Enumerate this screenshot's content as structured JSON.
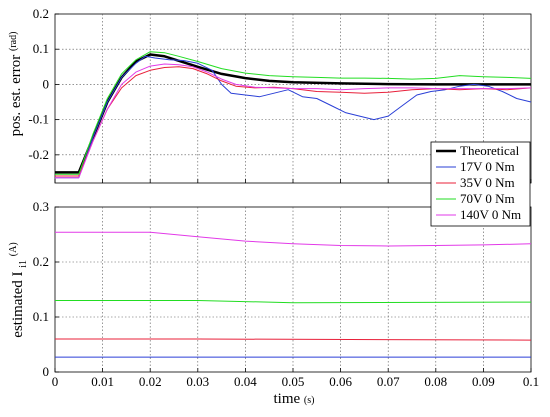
{
  "figure": {
    "xlabel_main": "time",
    "xlabel_unit": "(s)"
  },
  "legend": {
    "entries": [
      {
        "label": "Theoretical",
        "color": "#000000",
        "width": 2.5
      },
      {
        "label": "17V 0 Nm",
        "color": "#2a3fd6",
        "width": 1
      },
      {
        "label": "35V 0 Nm",
        "color": "#e8203a",
        "width": 1
      },
      {
        "label": "70V 0 Nm",
        "color": "#22dd22",
        "width": 1
      },
      {
        "label": "140V 0 Nm",
        "color": "#e23ae8",
        "width": 1
      }
    ]
  },
  "chart_data": [
    {
      "type": "line",
      "ylabel_main": "pos. est. error",
      "ylabel_unit": "(rad)",
      "xlim": [
        0,
        0.1
      ],
      "ylim": [
        -0.28,
        0.2
      ],
      "xticks": [
        "0",
        "0.01",
        "0.02",
        "0.03",
        "0.04",
        "0.05",
        "0.06",
        "0.07",
        "0.08",
        "0.09",
        "0.1"
      ],
      "yticks": [
        -0.2,
        -0.1,
        0,
        0.1,
        0.2
      ],
      "ytick_labels": [
        "-0.2",
        "-0.1",
        "0",
        "0.1",
        "0.2"
      ],
      "grid": true,
      "legend_position": "bottom-right",
      "series": [
        {
          "name": "Theoretical",
          "color": "#000000",
          "width": 2.5,
          "points": [
            [
              0,
              -0.25
            ],
            [
              0.005,
              -0.25
            ],
            [
              0.008,
              -0.15
            ],
            [
              0.011,
              -0.05
            ],
            [
              0.014,
              0.02
            ],
            [
              0.017,
              0.065
            ],
            [
              0.02,
              0.085
            ],
            [
              0.023,
              0.08
            ],
            [
              0.026,
              0.067
            ],
            [
              0.03,
              0.05
            ],
            [
              0.035,
              0.03
            ],
            [
              0.04,
              0.018
            ],
            [
              0.045,
              0.01
            ],
            [
              0.05,
              0.006
            ],
            [
              0.06,
              0.003
            ],
            [
              0.07,
              0.001
            ],
            [
              0.08,
              0.0
            ],
            [
              0.09,
              0.0
            ],
            [
              0.1,
              0.0
            ]
          ]
        },
        {
          "name": "17V 0 Nm",
          "color": "#2a3fd6",
          "width": 1,
          "points": [
            [
              0,
              -0.265
            ],
            [
              0.005,
              -0.265
            ],
            [
              0.008,
              -0.15
            ],
            [
              0.011,
              -0.05
            ],
            [
              0.014,
              0.02
            ],
            [
              0.017,
              0.06
            ],
            [
              0.019,
              0.08
            ],
            [
              0.021,
              0.075
            ],
            [
              0.024,
              0.07
            ],
            [
              0.027,
              0.068
            ],
            [
              0.03,
              0.06
            ],
            [
              0.033,
              0.04
            ],
            [
              0.035,
              0.0
            ],
            [
              0.037,
              -0.025
            ],
            [
              0.04,
              -0.03
            ],
            [
              0.043,
              -0.035
            ],
            [
              0.046,
              -0.025
            ],
            [
              0.049,
              -0.015
            ],
            [
              0.052,
              -0.035
            ],
            [
              0.055,
              -0.04
            ],
            [
              0.058,
              -0.06
            ],
            [
              0.061,
              -0.08
            ],
            [
              0.064,
              -0.09
            ],
            [
              0.067,
              -0.1
            ],
            [
              0.07,
              -0.09
            ],
            [
              0.073,
              -0.06
            ],
            [
              0.076,
              -0.03
            ],
            [
              0.079,
              -0.02
            ],
            [
              0.082,
              -0.015
            ],
            [
              0.085,
              -0.005
            ],
            [
              0.088,
              0.0
            ],
            [
              0.091,
              -0.005
            ],
            [
              0.094,
              -0.02
            ],
            [
              0.097,
              -0.04
            ],
            [
              0.1,
              -0.05
            ]
          ]
        },
        {
          "name": "35V 0 Nm",
          "color": "#e8203a",
          "width": 1,
          "points": [
            [
              0,
              -0.26
            ],
            [
              0.005,
              -0.26
            ],
            [
              0.008,
              -0.16
            ],
            [
              0.011,
              -0.07
            ],
            [
              0.014,
              -0.01
            ],
            [
              0.017,
              0.025
            ],
            [
              0.02,
              0.04
            ],
            [
              0.023,
              0.048
            ],
            [
              0.026,
              0.05
            ],
            [
              0.029,
              0.045
            ],
            [
              0.032,
              0.03
            ],
            [
              0.035,
              0.01
            ],
            [
              0.038,
              -0.005
            ],
            [
              0.042,
              -0.01
            ],
            [
              0.046,
              -0.008
            ],
            [
              0.05,
              -0.012
            ],
            [
              0.055,
              -0.02
            ],
            [
              0.06,
              -0.022
            ],
            [
              0.065,
              -0.025
            ],
            [
              0.07,
              -0.022
            ],
            [
              0.075,
              -0.015
            ],
            [
              0.08,
              -0.012
            ],
            [
              0.085,
              -0.015
            ],
            [
              0.09,
              -0.012
            ],
            [
              0.095,
              -0.015
            ],
            [
              0.1,
              -0.01
            ]
          ]
        },
        {
          "name": "70V 0 Nm",
          "color": "#22dd22",
          "width": 1,
          "points": [
            [
              0,
              -0.255
            ],
            [
              0.005,
              -0.255
            ],
            [
              0.008,
              -0.14
            ],
            [
              0.011,
              -0.04
            ],
            [
              0.014,
              0.03
            ],
            [
              0.017,
              0.07
            ],
            [
              0.02,
              0.093
            ],
            [
              0.023,
              0.09
            ],
            [
              0.026,
              0.08
            ],
            [
              0.03,
              0.065
            ],
            [
              0.035,
              0.045
            ],
            [
              0.04,
              0.032
            ],
            [
              0.045,
              0.025
            ],
            [
              0.05,
              0.022
            ],
            [
              0.055,
              0.02
            ],
            [
              0.06,
              0.018
            ],
            [
              0.065,
              0.018
            ],
            [
              0.07,
              0.017
            ],
            [
              0.075,
              0.015
            ],
            [
              0.08,
              0.017
            ],
            [
              0.085,
              0.025
            ],
            [
              0.09,
              0.022
            ],
            [
              0.095,
              0.02
            ],
            [
              0.1,
              0.017
            ]
          ]
        },
        {
          "name": "140V 0 Nm",
          "color": "#e23ae8",
          "width": 1,
          "points": [
            [
              0,
              -0.265
            ],
            [
              0.005,
              -0.265
            ],
            [
              0.008,
              -0.16
            ],
            [
              0.011,
              -0.07
            ],
            [
              0.014,
              0.0
            ],
            [
              0.017,
              0.035
            ],
            [
              0.02,
              0.052
            ],
            [
              0.023,
              0.058
            ],
            [
              0.026,
              0.056
            ],
            [
              0.029,
              0.05
            ],
            [
              0.032,
              0.035
            ],
            [
              0.035,
              0.015
            ],
            [
              0.038,
              0.0
            ],
            [
              0.042,
              -0.008
            ],
            [
              0.046,
              -0.01
            ],
            [
              0.05,
              -0.012
            ],
            [
              0.055,
              -0.012
            ],
            [
              0.06,
              -0.015
            ],
            [
              0.065,
              -0.012
            ],
            [
              0.07,
              -0.01
            ],
            [
              0.075,
              -0.01
            ],
            [
              0.08,
              -0.012
            ],
            [
              0.085,
              -0.012
            ],
            [
              0.09,
              -0.012
            ],
            [
              0.095,
              -0.012
            ],
            [
              0.1,
              -0.01
            ]
          ]
        }
      ]
    },
    {
      "type": "line",
      "ylabel_main": "estimated I",
      "ylabel_sub": "i1",
      "ylabel_unit": "(A)",
      "xlim": [
        0,
        0.1
      ],
      "ylim": [
        0,
        0.3
      ],
      "xticks": [
        "0",
        "0.01",
        "0.02",
        "0.03",
        "0.04",
        "0.05",
        "0.06",
        "0.07",
        "0.08",
        "0.09",
        "0.1"
      ],
      "yticks": [
        0,
        0.1,
        0.2,
        0.3
      ],
      "ytick_labels": [
        "0",
        "0.1",
        "0.2",
        "0.3"
      ],
      "grid": true,
      "series": [
        {
          "name": "17V 0 Nm",
          "color": "#2a3fd6",
          "width": 1,
          "points": [
            [
              0,
              0.027
            ],
            [
              0.1,
              0.027
            ]
          ]
        },
        {
          "name": "35V 0 Nm",
          "color": "#e8203a",
          "width": 1,
          "points": [
            [
              0,
              0.06
            ],
            [
              0.03,
              0.06
            ],
            [
              0.1,
              0.058
            ]
          ]
        },
        {
          "name": "70V 0 Nm",
          "color": "#22dd22",
          "width": 1,
          "points": [
            [
              0,
              0.13
            ],
            [
              0.03,
              0.13
            ],
            [
              0.05,
              0.126
            ],
            [
              0.1,
              0.127
            ]
          ]
        },
        {
          "name": "140V 0 Nm",
          "color": "#e23ae8",
          "width": 1,
          "points": [
            [
              0,
              0.254
            ],
            [
              0.02,
              0.254
            ],
            [
              0.03,
              0.246
            ],
            [
              0.04,
              0.238
            ],
            [
              0.05,
              0.233
            ],
            [
              0.06,
              0.23
            ],
            [
              0.07,
              0.229
            ],
            [
              0.08,
              0.23
            ],
            [
              0.09,
              0.231
            ],
            [
              0.1,
              0.233
            ]
          ]
        }
      ]
    }
  ]
}
